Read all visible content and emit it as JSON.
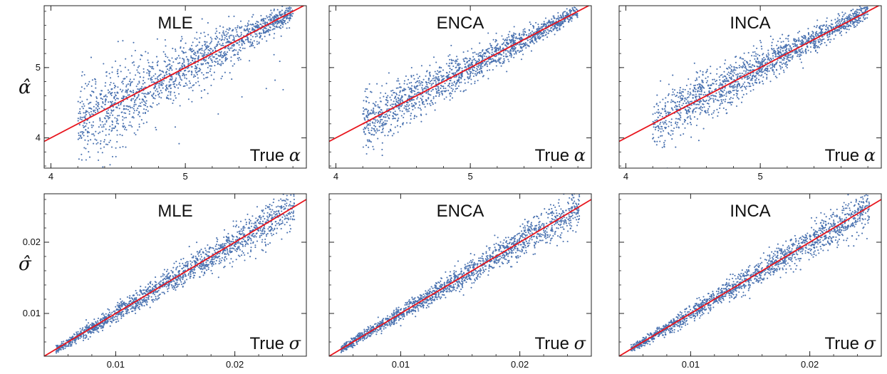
{
  "figure": {
    "row_labels": [
      "α̂",
      "σ̂"
    ]
  },
  "colors": {
    "points": "#4a72b0",
    "fit_line": "#e8141c",
    "axis": "#222222"
  },
  "chart_data": [
    {
      "type": "scatter",
      "row": 0,
      "col": 0,
      "title": "MLE",
      "xlabel": "True α",
      "ylabel": "α̂",
      "xlim": [
        3.95,
        5.9
      ],
      "ylim": [
        3.57,
        5.88
      ],
      "xticks": [
        4,
        5
      ],
      "yticks": [
        4,
        5
      ],
      "x_range": [
        4.2,
        5.8
      ],
      "scatter_spread": 0.3,
      "line": {
        "slope": 1,
        "intercept": 0
      }
    },
    {
      "type": "scatter",
      "row": 0,
      "col": 1,
      "title": "ENCA",
      "xlabel": "True α",
      "ylabel": "",
      "xlim": [
        3.95,
        5.9
      ],
      "ylim": [
        3.57,
        5.88
      ],
      "xticks": [
        4,
        5
      ],
      "yticks": [
        4,
        5
      ],
      "x_range": [
        4.2,
        5.8
      ],
      "scatter_spread": 0.18,
      "line": {
        "slope": 1,
        "intercept": 0
      }
    },
    {
      "type": "scatter",
      "row": 0,
      "col": 2,
      "title": "INCA",
      "xlabel": "True α",
      "ylabel": "",
      "xlim": [
        3.95,
        5.9
      ],
      "ylim": [
        3.57,
        5.88
      ],
      "xticks": [
        4,
        5
      ],
      "yticks": [
        4,
        5
      ],
      "x_range": [
        4.2,
        5.8
      ],
      "scatter_spread": 0.2,
      "line": {
        "slope": 1,
        "intercept": 0
      }
    },
    {
      "type": "scatter",
      "row": 1,
      "col": 0,
      "title": "MLE",
      "xlabel": "True σ",
      "ylabel": "σ̂",
      "xlim": [
        0.004,
        0.026
      ],
      "ylim": [
        0.004,
        0.0268
      ],
      "xticks": [
        0.01,
        0.02
      ],
      "yticks": [
        0.01,
        0.02
      ],
      "x_range": [
        0.005,
        0.025
      ],
      "scatter_spread": 0.06,
      "line": {
        "slope": 1,
        "intercept": 0
      }
    },
    {
      "type": "scatter",
      "row": 1,
      "col": 1,
      "title": "ENCA",
      "xlabel": "True σ",
      "ylabel": "",
      "xlim": [
        0.004,
        0.026
      ],
      "ylim": [
        0.004,
        0.0268
      ],
      "xticks": [
        0.01,
        0.02
      ],
      "yticks": [
        0.01,
        0.02
      ],
      "x_range": [
        0.005,
        0.025
      ],
      "scatter_spread": 0.055,
      "line": {
        "slope": 1,
        "intercept": 0
      }
    },
    {
      "type": "scatter",
      "row": 1,
      "col": 2,
      "title": "INCA",
      "xlabel": "True σ",
      "ylabel": "",
      "xlim": [
        0.004,
        0.026
      ],
      "ylim": [
        0.004,
        0.0268
      ],
      "xticks": [
        0.01,
        0.02
      ],
      "yticks": [
        0.01,
        0.02
      ],
      "x_range": [
        0.005,
        0.025
      ],
      "scatter_spread": 0.055,
      "line": {
        "slope": 1,
        "intercept": 0
      }
    }
  ]
}
